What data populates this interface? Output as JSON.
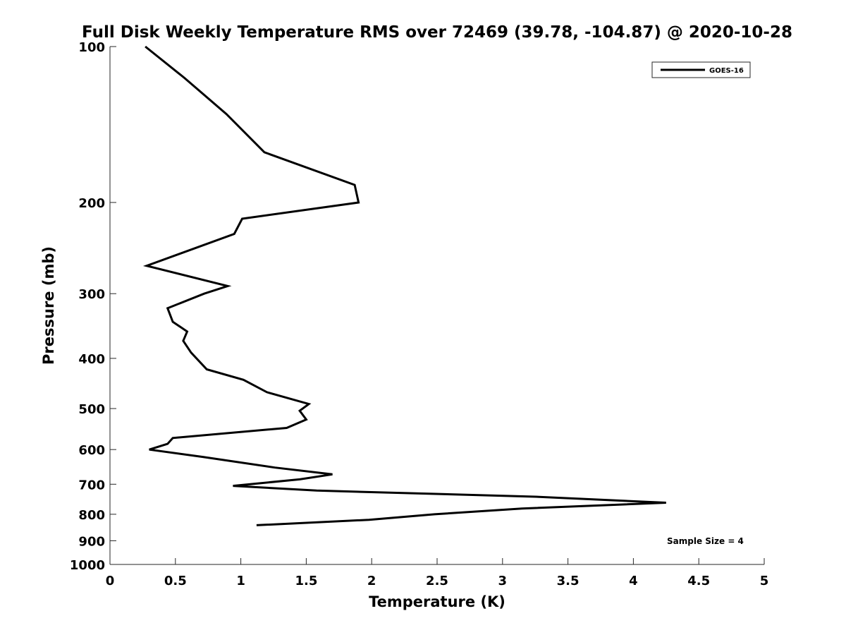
{
  "chart_data": {
    "type": "line",
    "title": "Full Disk Weekly Temperature RMS over 72469 (39.78, -104.87) @ 2020-10-28",
    "xlabel": "Temperature (K)",
    "ylabel": "Pressure (mb)",
    "xlim": [
      0,
      5
    ],
    "ylim": [
      100,
      1000
    ],
    "y_scale": "log",
    "y_reversed": true,
    "x_ticks": [
      "0",
      "0.5",
      "1",
      "1.5",
      "2",
      "2.5",
      "3",
      "3.5",
      "4",
      "4.5",
      "5"
    ],
    "y_ticks": [
      "100",
      "200",
      "300",
      "400",
      "500",
      "600",
      "700",
      "800",
      "900",
      "1000"
    ],
    "grid": false,
    "legend_position": "top-right",
    "annotation": "Sample Size = 4",
    "series": [
      {
        "name": "GOES-16",
        "color": "#000000",
        "points": [
          [
            0.27,
            100
          ],
          [
            0.57,
            115
          ],
          [
            0.89,
            135
          ],
          [
            1.18,
            160
          ],
          [
            1.87,
            185
          ],
          [
            1.9,
            200
          ],
          [
            1.01,
            215
          ],
          [
            0.95,
            230
          ],
          [
            0.28,
            265
          ],
          [
            0.9,
            290
          ],
          [
            0.72,
            300
          ],
          [
            0.44,
            320
          ],
          [
            0.48,
            340
          ],
          [
            0.59,
            355
          ],
          [
            0.56,
            370
          ],
          [
            0.62,
            390
          ],
          [
            0.74,
            420
          ],
          [
            1.02,
            440
          ],
          [
            1.2,
            465
          ],
          [
            1.52,
            490
          ],
          [
            1.45,
            505
          ],
          [
            1.5,
            525
          ],
          [
            1.35,
            545
          ],
          [
            0.48,
            570
          ],
          [
            0.44,
            585
          ],
          [
            0.3,
            600
          ],
          [
            0.71,
            620
          ],
          [
            1.26,
            650
          ],
          [
            1.7,
            670
          ],
          [
            1.45,
            685
          ],
          [
            0.94,
            705
          ],
          [
            1.58,
            720
          ],
          [
            3.25,
            740
          ],
          [
            4.25,
            760
          ],
          [
            3.15,
            780
          ],
          [
            2.48,
            800
          ],
          [
            1.98,
            820
          ],
          [
            1.12,
            840
          ]
        ]
      }
    ]
  }
}
